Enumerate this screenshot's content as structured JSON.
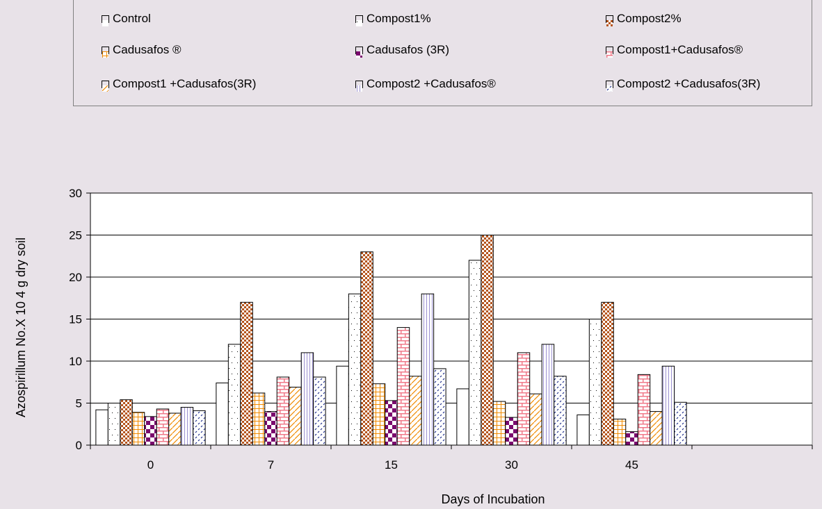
{
  "chart_data": {
    "type": "bar",
    "categories": [
      "0",
      "7",
      "15",
      "30",
      "45"
    ],
    "extra_empty_categories": 1,
    "xlabel": "Days of Incubation",
    "ylabel": "Azospirillum No.X 10 4 g dry soil",
    "ylim": [
      0,
      30
    ],
    "yticks": [
      0,
      5,
      10,
      15,
      20,
      25,
      30
    ],
    "grid": "horizontal",
    "legend_position": "top",
    "series": [
      {
        "name": "Control",
        "pattern": "white",
        "values": [
          4.2,
          7.4,
          9.4,
          6.7,
          3.6
        ]
      },
      {
        "name": "Compost1%",
        "pattern": "dots",
        "values": [
          5.0,
          12.0,
          18.0,
          22.0,
          15.0
        ]
      },
      {
        "name": "Compost2%",
        "pattern": "checker-brown",
        "values": [
          5.4,
          17.0,
          23.0,
          25.0,
          17.0
        ]
      },
      {
        "name": "Cadusafos ®",
        "pattern": "grid-orange",
        "values": [
          3.9,
          6.2,
          7.3,
          5.2,
          3.1
        ]
      },
      {
        "name": "Cadusafos (3R)",
        "pattern": "checker-purple",
        "values": [
          3.4,
          4.0,
          5.3,
          3.3,
          1.6
        ]
      },
      {
        "name": "Compost1+Cadusafos®",
        "pattern": "brick-pink",
        "values": [
          4.3,
          8.1,
          14.0,
          11.0,
          8.4
        ]
      },
      {
        "name": "Compost1 +Cadusafos(3R)",
        "pattern": "diag-orange",
        "values": [
          3.8,
          6.9,
          8.2,
          6.1,
          4.0
        ]
      },
      {
        "name": "Compost2 +Cadusafos®",
        "pattern": "vlines-lavender",
        "values": [
          4.5,
          11.0,
          18.0,
          12.0,
          9.4
        ]
      },
      {
        "name": "Compost2 +Cadusafos(3R)",
        "pattern": "diag-blue",
        "values": [
          4.1,
          8.1,
          9.1,
          8.2,
          5.1
        ]
      }
    ]
  }
}
